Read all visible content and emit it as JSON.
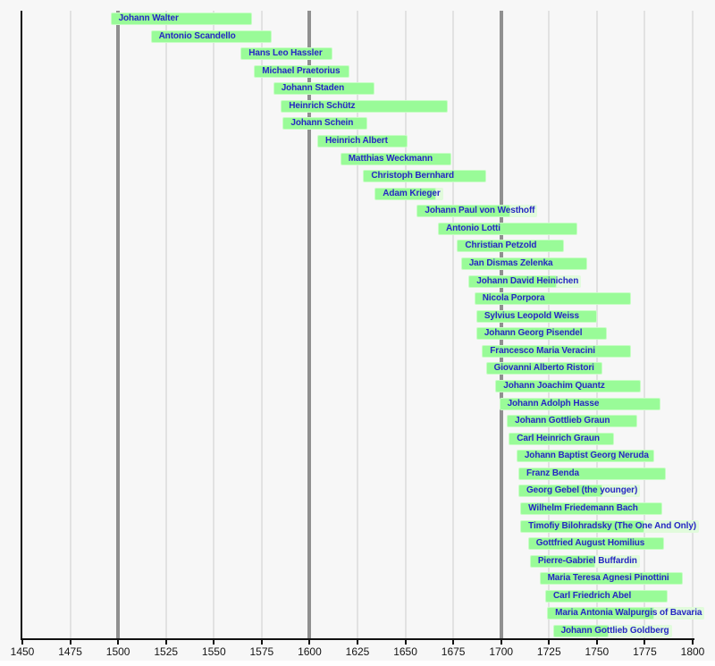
{
  "chart_data": {
    "type": "bar",
    "subtype": "horizontal-timeline-gantt",
    "title": "",
    "xlabel": "",
    "ylabel": "",
    "xlim": [
      1450,
      1800
    ],
    "x_tick_interval": 25,
    "x_ticks": [
      1450,
      1475,
      1500,
      1525,
      1550,
      1575,
      1600,
      1625,
      1650,
      1675,
      1700,
      1725,
      1750,
      1775,
      1800
    ],
    "major_gridlines": [
      1500,
      1600,
      1700
    ],
    "minor_gridlines": [
      1475,
      1525,
      1550,
      1575,
      1625,
      1650,
      1675,
      1725,
      1750,
      1775,
      1800
    ],
    "legend": null,
    "grid": true,
    "bars": [
      {
        "label": "Johann Walter",
        "start": 1496,
        "end": 1570
      },
      {
        "label": "Antonio Scandello",
        "start": 1517,
        "end": 1580
      },
      {
        "label": "Hans Leo Hassler",
        "start": 1564,
        "end": 1612
      },
      {
        "label": "Michael Praetorius",
        "start": 1571,
        "end": 1621
      },
      {
        "label": "Johann Staden",
        "start": 1581,
        "end": 1634
      },
      {
        "label": "Heinrich Schütz",
        "start": 1585,
        "end": 1672
      },
      {
        "label": "Johann Schein",
        "start": 1586,
        "end": 1630
      },
      {
        "label": "Heinrich Albert",
        "start": 1604,
        "end": 1651
      },
      {
        "label": "Matthias Weckmann",
        "start": 1616,
        "end": 1674
      },
      {
        "label": "Christoph Bernhard",
        "start": 1628,
        "end": 1692
      },
      {
        "label": "Adam Krieger",
        "start": 1634,
        "end": 1666
      },
      {
        "label": "Johann Paul von Westhoff",
        "start": 1656,
        "end": 1705
      },
      {
        "label": "Antonio Lotti",
        "start": 1667,
        "end": 1740
      },
      {
        "label": "Christian Petzold",
        "start": 1677,
        "end": 1733
      },
      {
        "label": "Jan Dismas Zelenka",
        "start": 1679,
        "end": 1745
      },
      {
        "label": "Johann David Heinichen",
        "start": 1683,
        "end": 1729
      },
      {
        "label": "Nicola Porpora",
        "start": 1686,
        "end": 1768
      },
      {
        "label": "Sylvius Leopold Weiss",
        "start": 1687,
        "end": 1750
      },
      {
        "label": "Johann Georg Pisendel",
        "start": 1687,
        "end": 1755
      },
      {
        "label": "Francesco Maria Veracini",
        "start": 1690,
        "end": 1768
      },
      {
        "label": "Giovanni Alberto Ristori",
        "start": 1692,
        "end": 1753
      },
      {
        "label": "Johann Joachim Quantz",
        "start": 1697,
        "end": 1773
      },
      {
        "label": "Johann Adolph Hasse",
        "start": 1699,
        "end": 1783
      },
      {
        "label": "Johann Gottlieb Graun",
        "start": 1703,
        "end": 1771
      },
      {
        "label": "Carl Heinrich Graun",
        "start": 1704,
        "end": 1759
      },
      {
        "label": "Johann Baptist Georg Neruda",
        "start": 1708,
        "end": 1780
      },
      {
        "label": "Franz Benda",
        "start": 1709,
        "end": 1786
      },
      {
        "label": "Georg Gebel (the younger)",
        "start": 1709,
        "end": 1753
      },
      {
        "label": "Wilhelm Friedemann Bach",
        "start": 1710,
        "end": 1784
      },
      {
        "label": "Timofiy Bilohradsky (The One And Only)",
        "start": 1710,
        "end": 1775
      },
      {
        "label": "Gottfried August Homilius",
        "start": 1714,
        "end": 1785
      },
      {
        "label": "Pierre-Gabriel Buffardin",
        "start": 1715,
        "end": 1749
      },
      {
        "label": "Maria Teresa Agnesi Pinottini",
        "start": 1720,
        "end": 1795
      },
      {
        "label": "Carl Friedrich Abel",
        "start": 1723,
        "end": 1787
      },
      {
        "label": "Maria Antonia Walpurgis of Bavaria",
        "start": 1724,
        "end": 1780
      },
      {
        "label": "Johann Gottlieb Goldberg",
        "start": 1727,
        "end": 1756
      }
    ]
  },
  "colors": {
    "background": "#f7f7f7",
    "bar_fill": "#99fb98",
    "bar_border": "#c8fdc5",
    "label_halo": "#e1fbdc",
    "label_text": "#2626c4",
    "axis_line": "#111111",
    "tick_label": "#141414",
    "major_grid": "#909090",
    "minor_grid": "#e2e2e2",
    "bottom_strip": "#ffffff"
  },
  "layout_hints": {
    "legend_position": "none",
    "axis_side": "bottom"
  }
}
